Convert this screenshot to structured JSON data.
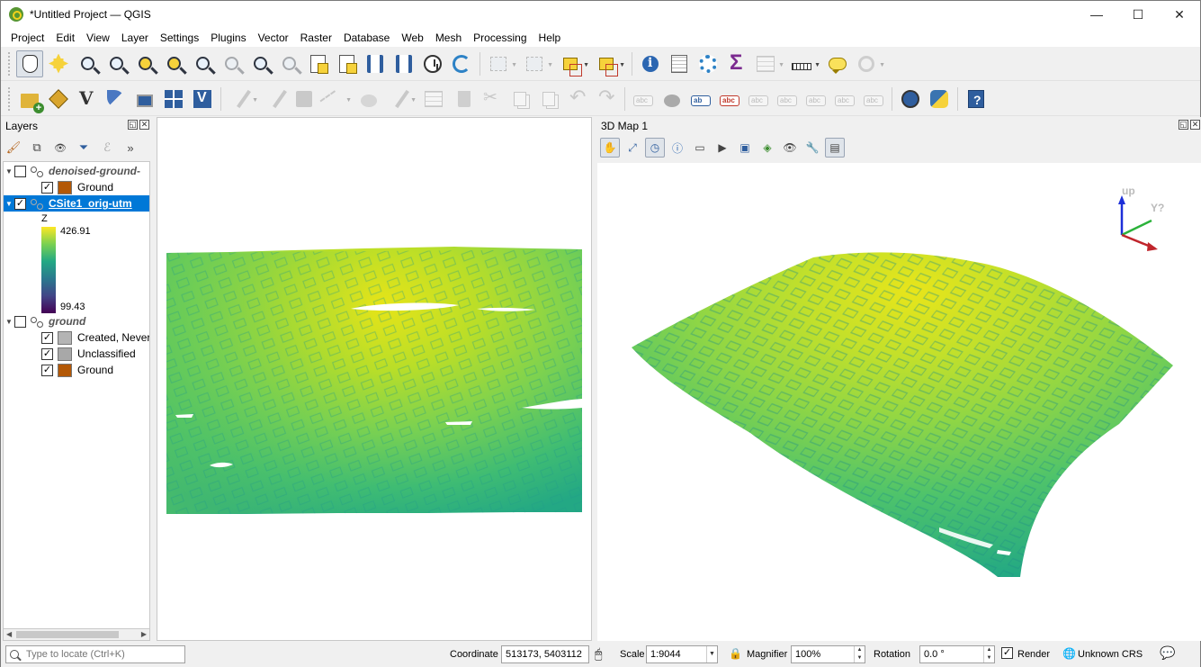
{
  "window": {
    "title": "*Untitled Project — QGIS",
    "minimize": "—",
    "maximize": "☐",
    "close": "✕"
  },
  "menu": [
    "Project",
    "Edit",
    "View",
    "Layer",
    "Settings",
    "Plugins",
    "Vector",
    "Raster",
    "Database",
    "Web",
    "Mesh",
    "Processing",
    "Help"
  ],
  "toolbar1_icons": [
    "pan-hand-icon",
    "pan-to-selection-icon",
    "zoom-in-icon",
    "zoom-out-icon",
    "zoom-full-icon",
    "zoom-to-selection-icon",
    "zoom-to-layer-icon",
    "zoom-native-icon",
    "zoom-last-icon",
    "zoom-next-icon",
    "new-map-view-icon",
    "new-3d-map-icon",
    "new-bookmark-icon",
    "show-bookmarks-icon",
    "temporal-controller-icon",
    "refresh-icon",
    "select-features-icon",
    "select-by-value-icon",
    "deselect-icon",
    "select-location-icon",
    "identify-icon",
    "open-field-calculator-icon",
    "processing-toolbox-icon",
    "statistical-summary-icon",
    "attribute-table-icon",
    "measure-line-icon",
    "map-tips-icon",
    "search-lens-icon"
  ],
  "toolbar2_icons": [
    "open-data-source-manager-icon",
    "new-geopackage-layer-icon",
    "new-virtual-layer-icon",
    "digitize-quill-icon",
    "new-spatialite-layer-icon",
    "new-temporary-layer-icon",
    "new-mesh-layer-icon",
    "current-edits-icon",
    "toggle-editing-icon",
    "save-layer-edits-icon",
    "digitize-line-icon",
    "add-polygon-icon",
    "vertex-tool-icon",
    "modify-attributes-icon",
    "delete-selected-icon",
    "cut-features-icon",
    "copy-features-icon",
    "paste-features-icon",
    "undo-icon",
    "redo-icon",
    "label-abc-icon",
    "label-pin-icon",
    "label-highlight-icon",
    "label-red-icon",
    "label-move-icon",
    "label-show-icon",
    "label-rotate-icon",
    "label-change-icon",
    "label-edit-icon",
    "globe-plugin-icon",
    "python-console-icon",
    "help-icon"
  ],
  "layers_panel": {
    "title": "Layers",
    "undock": "◱",
    "close": "✕",
    "tool_icons": [
      "paintbrush-icon",
      "add-group-icon",
      "visibility-eye-icon",
      "filter-legend-icon",
      "expression-filter-icon",
      "overflow-chevron-icon"
    ],
    "overflow": "»",
    "tree": [
      {
        "kind": "layer",
        "name": "denoised-ground-",
        "checked": false,
        "italic": true,
        "selected": false
      },
      {
        "kind": "class",
        "name": "Ground",
        "checked": true,
        "color": "#b35806"
      },
      {
        "kind": "layer",
        "name": "CSite1_orig-utm",
        "checked": true,
        "italic": false,
        "selected": true
      },
      {
        "kind": "ramp",
        "attribute": "Z",
        "max": "426.91",
        "min": "99.43"
      },
      {
        "kind": "layer",
        "name": "ground",
        "checked": false,
        "italic": true,
        "selected": false
      },
      {
        "kind": "class",
        "name": "Created, Never",
        "checked": true,
        "color": "#b4b4b4"
      },
      {
        "kind": "class",
        "name": "Unclassified",
        "checked": true,
        "color": "#a8a8a8"
      },
      {
        "kind": "class",
        "name": "Ground",
        "checked": true,
        "color": "#b35806"
      }
    ]
  },
  "map3d_panel": {
    "title": "3D Map 1",
    "undock": "◱",
    "close": "✕",
    "tool_icons": [
      "camera-pan-icon",
      "zoom-full-3d-icon",
      "toggle-on-screen-nav-icon",
      "identify-3d-icon",
      "measure-3d-icon",
      "animation-play-icon",
      "save-image-icon",
      "export-3d-scene-icon",
      "camera-eye-icon",
      "configure-wrench-icon",
      "view-sync-icon"
    ],
    "axis": {
      "up_label": "up",
      "y_label": "Y?"
    }
  },
  "status": {
    "locator_placeholder": "Type to locate (Ctrl+K)",
    "coordinate_label": "Coordinate",
    "coordinate_value": "513173, 5403112",
    "scale_label": "Scale",
    "scale_value": "1:9044",
    "magnifier_label": "Magnifier",
    "magnifier_value": "100%",
    "rotation_label": "Rotation",
    "rotation_value": "0.0 °",
    "render_label": "Render",
    "render_checked": true,
    "crs_label": "Unknown CRS"
  },
  "colors": {
    "ramp": [
      "#fde725",
      "#7ad151",
      "#22a884",
      "#2a788e",
      "#414487",
      "#440154"
    ],
    "selection": "#0078d7"
  }
}
